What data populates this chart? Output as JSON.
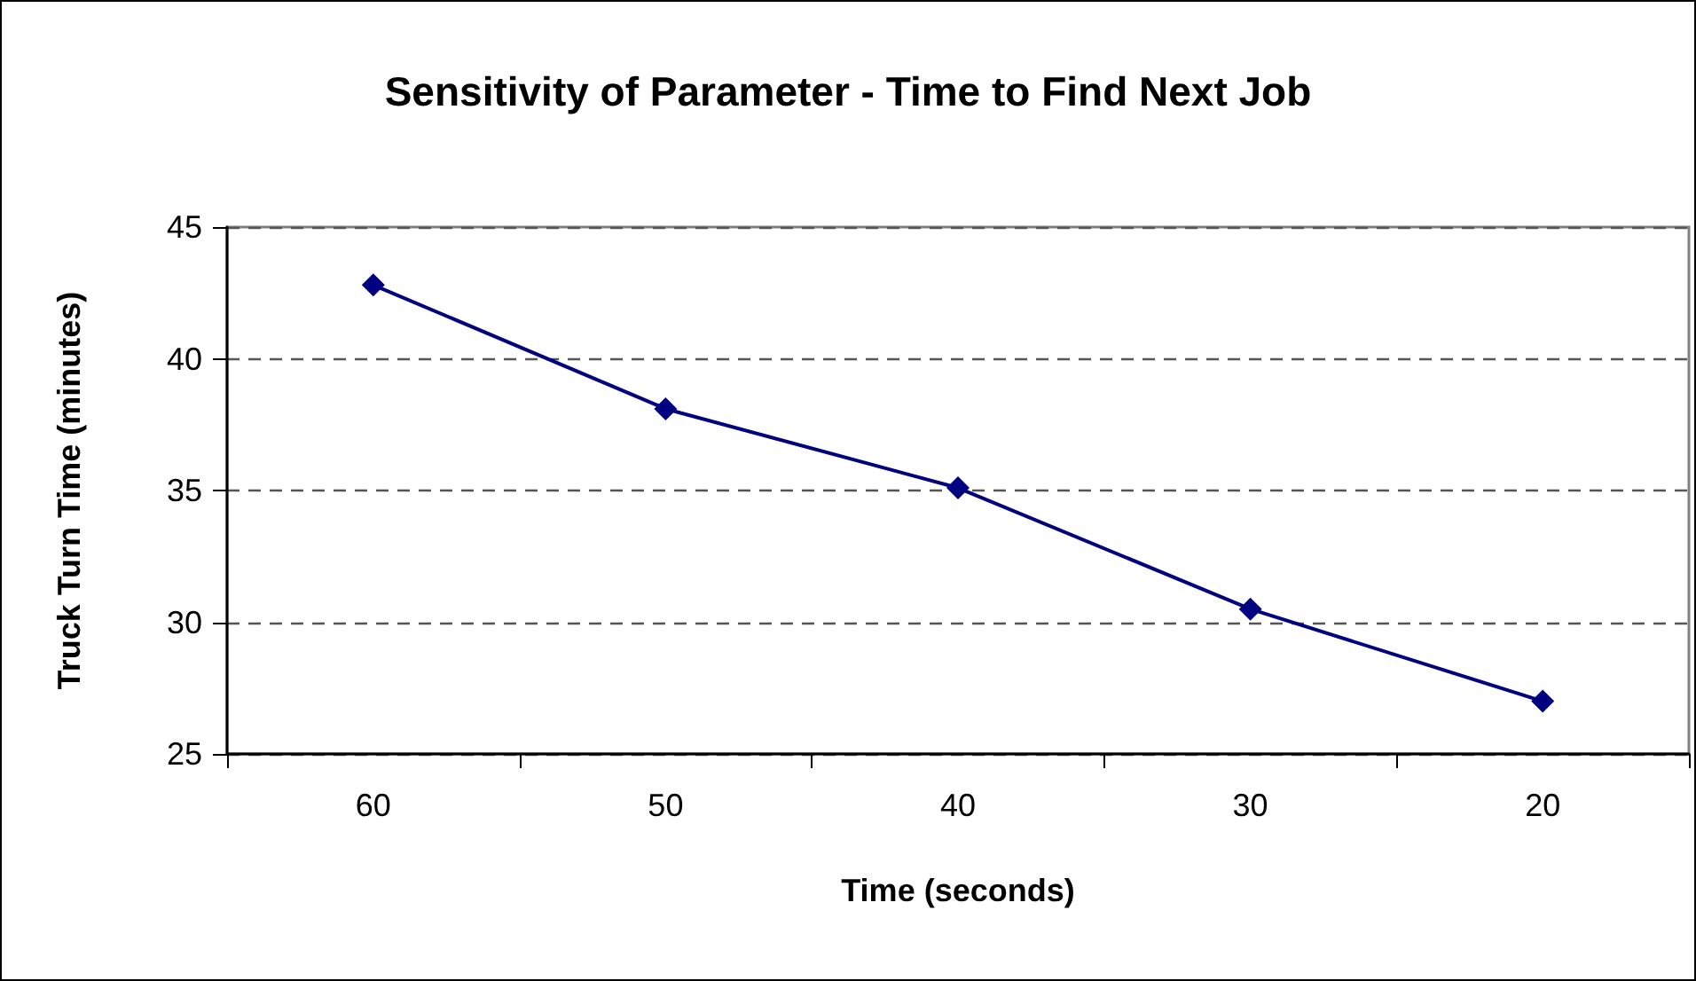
{
  "chart_data": {
    "type": "line",
    "title": "Sensitivity of Parameter - Time to Find Next Job",
    "xlabel": "Time (seconds)",
    "ylabel": "Truck Turn Time (minutes)",
    "categories": [
      "60",
      "50",
      "40",
      "30",
      "20"
    ],
    "series": [
      {
        "color": "#000080",
        "values": [
          42.8,
          38.1,
          35.1,
          30.5,
          27.0
        ]
      }
    ],
    "ylim": [
      25,
      45
    ],
    "yticks": [
      25,
      30,
      35,
      40,
      45
    ],
    "grid": "y",
    "marker": "diamond",
    "line_style": "solid"
  }
}
